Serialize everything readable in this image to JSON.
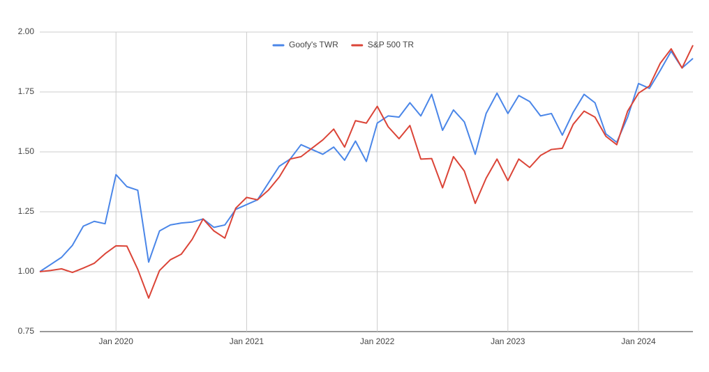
{
  "chart_data": {
    "type": "line",
    "categories": [
      null,
      null,
      null,
      null,
      null,
      null,
      null,
      "Jan 2020",
      null,
      null,
      null,
      null,
      null,
      null,
      null,
      null,
      null,
      null,
      null,
      "Jan 2021",
      null,
      null,
      null,
      null,
      null,
      null,
      null,
      null,
      null,
      null,
      null,
      "Jan 2022",
      null,
      null,
      null,
      null,
      null,
      null,
      null,
      null,
      null,
      null,
      null,
      "Jan 2023",
      null,
      null,
      null,
      null,
      null,
      null,
      null,
      null,
      null,
      null,
      null,
      "Jan 2024",
      null,
      null,
      null,
      null,
      null
    ],
    "series": [
      {
        "name": "Goofy's TWR",
        "color": "#4a86e8",
        "values": [
          1.0,
          1.03,
          1.06,
          1.11,
          1.19,
          1.21,
          1.2,
          1.405,
          1.355,
          1.34,
          1.04,
          1.17,
          1.195,
          1.203,
          1.207,
          1.22,
          1.185,
          1.195,
          1.26,
          1.28,
          1.3,
          1.37,
          1.44,
          1.47,
          1.53,
          1.51,
          1.49,
          1.52,
          1.465,
          1.545,
          1.46,
          1.62,
          1.65,
          1.645,
          1.705,
          1.65,
          1.74,
          1.59,
          1.675,
          1.625,
          1.49,
          1.66,
          1.745,
          1.66,
          1.735,
          1.71,
          1.65,
          1.66,
          1.57,
          1.665,
          1.74,
          1.705,
          1.575,
          1.54,
          1.645,
          1.785,
          1.765,
          1.84,
          1.92,
          1.85,
          1.89
        ]
      },
      {
        "name": "S&P 500 TR",
        "color": "#db4437",
        "values": [
          1.0,
          1.005,
          1.012,
          0.997,
          1.015,
          1.035,
          1.075,
          1.108,
          1.107,
          1.01,
          0.89,
          1.005,
          1.05,
          1.073,
          1.135,
          1.22,
          1.17,
          1.14,
          1.265,
          1.31,
          1.3,
          1.34,
          1.395,
          1.47,
          1.48,
          1.515,
          1.55,
          1.595,
          1.52,
          1.63,
          1.62,
          1.69,
          1.605,
          1.555,
          1.61,
          1.47,
          1.472,
          1.35,
          1.48,
          1.42,
          1.285,
          1.39,
          1.47,
          1.38,
          1.47,
          1.435,
          1.485,
          1.51,
          1.515,
          1.615,
          1.67,
          1.645,
          1.565,
          1.53,
          1.67,
          1.745,
          1.775,
          1.87,
          1.93,
          1.85,
          1.945
        ]
      }
    ],
    "ylim": [
      0.75,
      2.0
    ],
    "yticks": [
      {
        "value": 0.75,
        "label": "0.75"
      },
      {
        "value": 1.0,
        "label": "1.00"
      },
      {
        "value": 1.25,
        "label": "1.25"
      },
      {
        "value": 1.5,
        "label": "1.50"
      },
      {
        "value": 1.75,
        "label": "1.75"
      },
      {
        "value": 2.0,
        "label": "2.00"
      }
    ],
    "grid": true,
    "legend": "top"
  }
}
